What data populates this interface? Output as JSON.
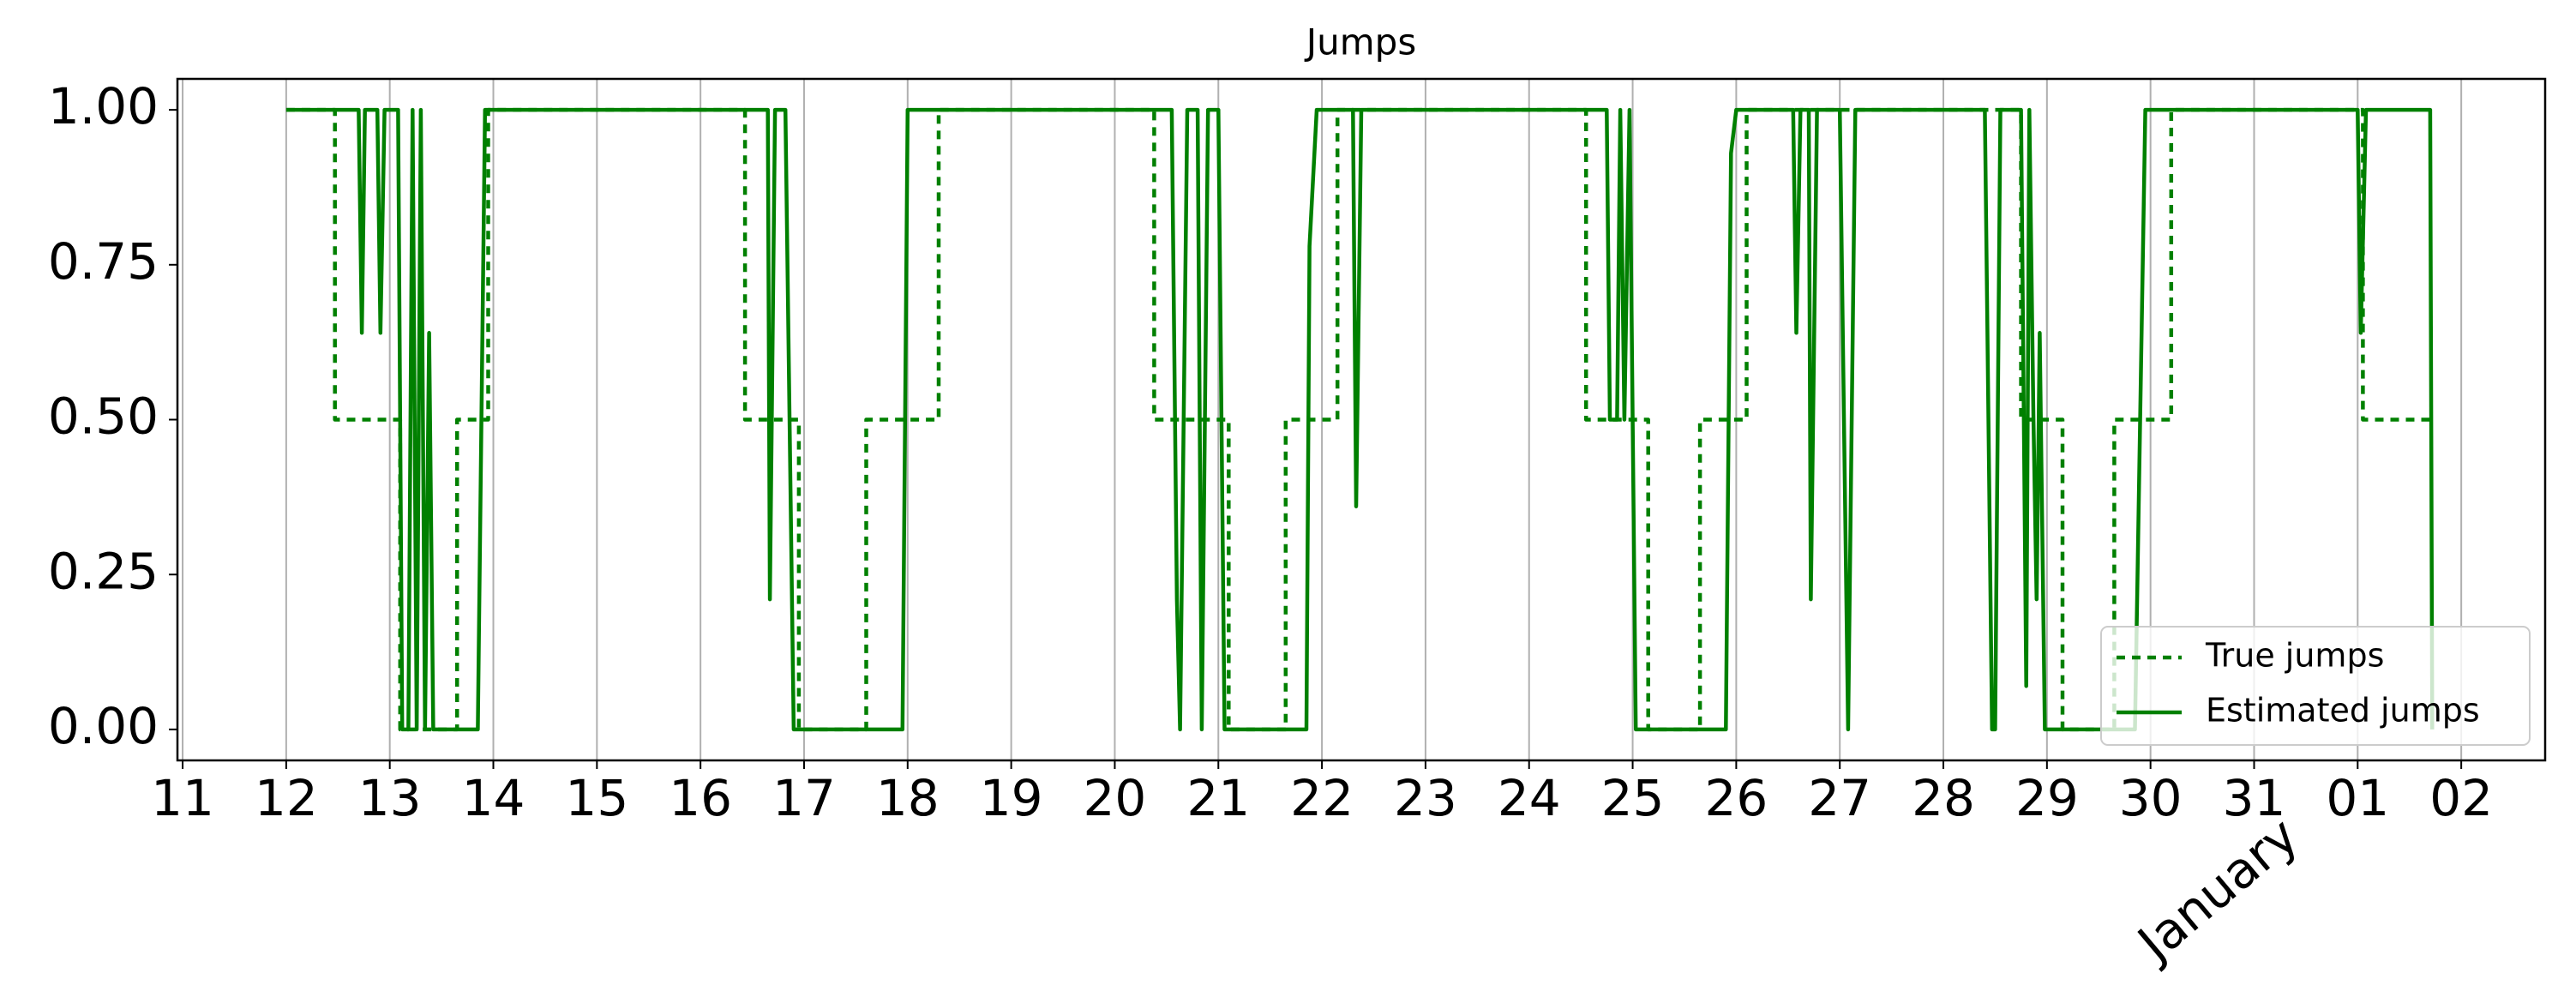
{
  "chart_data": {
    "type": "line",
    "title": "Jumps",
    "x_offset_label": "January",
    "xlim": [
      10.95,
      33.81
    ],
    "ylim": [
      -0.05,
      1.05
    ],
    "xticks": [
      11,
      12,
      13,
      14,
      15,
      16,
      17,
      18,
      19,
      20,
      21,
      22,
      23,
      24,
      25,
      26,
      27,
      28,
      29,
      30,
      31,
      {
        "value": 32,
        "label": "01"
      },
      {
        "value": 33,
        "label": "02"
      }
    ],
    "yticks": [
      {
        "value": 0,
        "label": "0.00"
      },
      {
        "value": 0.25,
        "label": "0.25"
      },
      {
        "value": 0.5,
        "label": "0.50"
      },
      {
        "value": 0.75,
        "label": "0.75"
      },
      {
        "value": 1,
        "label": "1.00"
      }
    ],
    "grid": "x",
    "legend": "lower right",
    "series": [
      {
        "name": "True jumps",
        "color": "#008000",
        "style": "dashed",
        "x": [
          12,
          12.47,
          12.47,
          13.1,
          13.1,
          13.65,
          13.65,
          13.95,
          13.95,
          16.43,
          16.43,
          16.95,
          16.95,
          17.6,
          17.6,
          18.3,
          18.3,
          20.38,
          20.38,
          21.1,
          21.1,
          21.65,
          21.65,
          22.15,
          22.15,
          24.55,
          24.55,
          25.15,
          25.15,
          25.65,
          25.65,
          26.1,
          26.1,
          28.75,
          28.75,
          29.15,
          29.15,
          29.65,
          29.65,
          30.2,
          30.2,
          32.05,
          32.05,
          32.7
        ],
        "values": [
          1,
          1,
          0.5,
          0.5,
          0,
          0,
          0.5,
          0.5,
          1,
          1,
          0.5,
          0.5,
          0,
          0,
          0.5,
          0.5,
          1,
          1,
          0.5,
          0.5,
          0,
          0,
          0.5,
          0.5,
          1,
          1,
          0.5,
          0.5,
          0,
          0,
          0.5,
          0.5,
          1,
          1,
          0.5,
          0.5,
          0,
          0,
          0.5,
          0.5,
          1,
          1,
          0.5,
          0.5
        ]
      },
      {
        "name": "Estimated jumps",
        "color": "#008000",
        "style": "solid",
        "x": [
          12,
          12.7,
          12.73,
          12.76,
          12.88,
          12.91,
          12.95,
          13.08,
          13.12,
          13.18,
          13.22,
          13.26,
          13.3,
          13.34,
          13.38,
          13.42,
          13.85,
          13.92,
          16.65,
          16.67,
          16.72,
          16.82,
          16.9,
          17.95,
          18,
          20.55,
          20.6,
          20.63,
          20.7,
          20.8,
          20.84,
          20.9,
          21,
          21.06,
          21.85,
          21.88,
          21.95,
          22.3,
          22.33,
          22.38,
          24.75,
          24.78,
          24.85,
          24.88,
          24.92,
          24.97,
          25.03,
          25.9,
          25.95,
          26,
          26.55,
          26.58,
          26.62,
          26.7,
          26.72,
          26.78,
          27,
          27.08,
          27.15,
          28.4,
          28.47,
          28.5,
          28.55,
          28.75,
          28.8,
          28.83,
          28.87,
          28.9,
          28.93,
          28.98,
          29.85,
          29.95,
          32,
          32.03,
          32.08,
          32.7,
          32.72
        ],
        "values": [
          1,
          1,
          0.64,
          1,
          1,
          0.64,
          1,
          1,
          0,
          0,
          1,
          0,
          1,
          0,
          0.64,
          0,
          0,
          1,
          1,
          0.21,
          1,
          1,
          0,
          0,
          1,
          1,
          0.21,
          0,
          1,
          1,
          0,
          1,
          1,
          0,
          0,
          0.78,
          1,
          1,
          0.36,
          1,
          1,
          0.5,
          0.5,
          1,
          0.5,
          1,
          0,
          0,
          0.93,
          1,
          1,
          0.64,
          1,
          1,
          0.21,
          1,
          1,
          0,
          1,
          1,
          0,
          0,
          1,
          1,
          0.07,
          1,
          0.5,
          0.21,
          0.64,
          0,
          0,
          1,
          1,
          0.64,
          1,
          1,
          0
        ]
      }
    ]
  }
}
